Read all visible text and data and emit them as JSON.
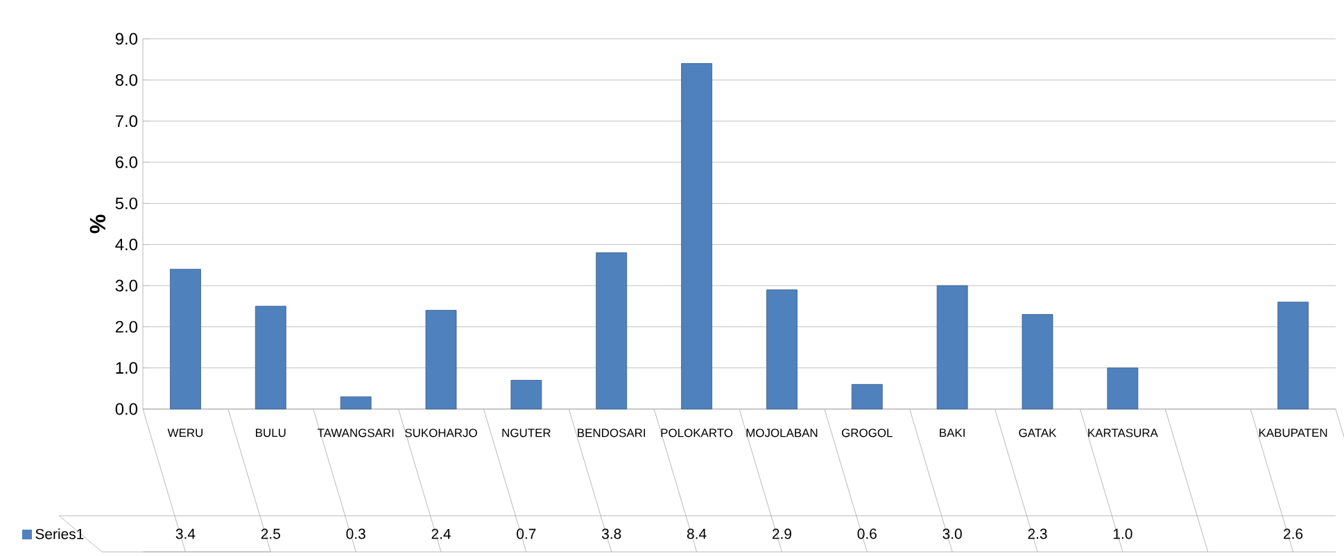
{
  "chart_data": {
    "type": "bar",
    "ylabel": "%",
    "categories": [
      "WERU",
      "BULU",
      "TAWANGSARI",
      "SUKOHARJO",
      "NGUTER",
      "BENDOSARI",
      "POLOKARTO",
      "MOJOLABAN",
      "GROGOL",
      "BAKI",
      "GATAK",
      "KARTASURA",
      null,
      "KABUPATEN"
    ],
    "series": [
      {
        "name": "Series1",
        "color": "#4f81bd",
        "values": [
          3.4,
          2.5,
          0.3,
          2.4,
          0.7,
          3.8,
          8.4,
          2.9,
          0.6,
          3.0,
          2.3,
          1.0,
          null,
          2.6
        ],
        "value_labels": [
          "3.4",
          "2.5",
          "0.3",
          "2.4",
          "0.7",
          "3.8",
          "8.4",
          "2.9",
          "0.6",
          "3.0",
          "2.3",
          "1.0",
          null,
          "2.6"
        ]
      }
    ],
    "ylim": [
      0,
      9
    ],
    "yticks": [
      {
        "value": 0,
        "label": "0.0"
      },
      {
        "value": 1,
        "label": "1.0"
      },
      {
        "value": 2,
        "label": "2.0"
      },
      {
        "value": 3,
        "label": "3.0"
      },
      {
        "value": 4,
        "label": "4.0"
      },
      {
        "value": 5,
        "label": "5.0"
      },
      {
        "value": 6,
        "label": "6.0"
      },
      {
        "value": 7,
        "label": "7.0"
      },
      {
        "value": 8,
        "label": "8.0"
      },
      {
        "value": 9,
        "label": "9.0"
      }
    ],
    "grid": "y",
    "legend": "bottom"
  }
}
